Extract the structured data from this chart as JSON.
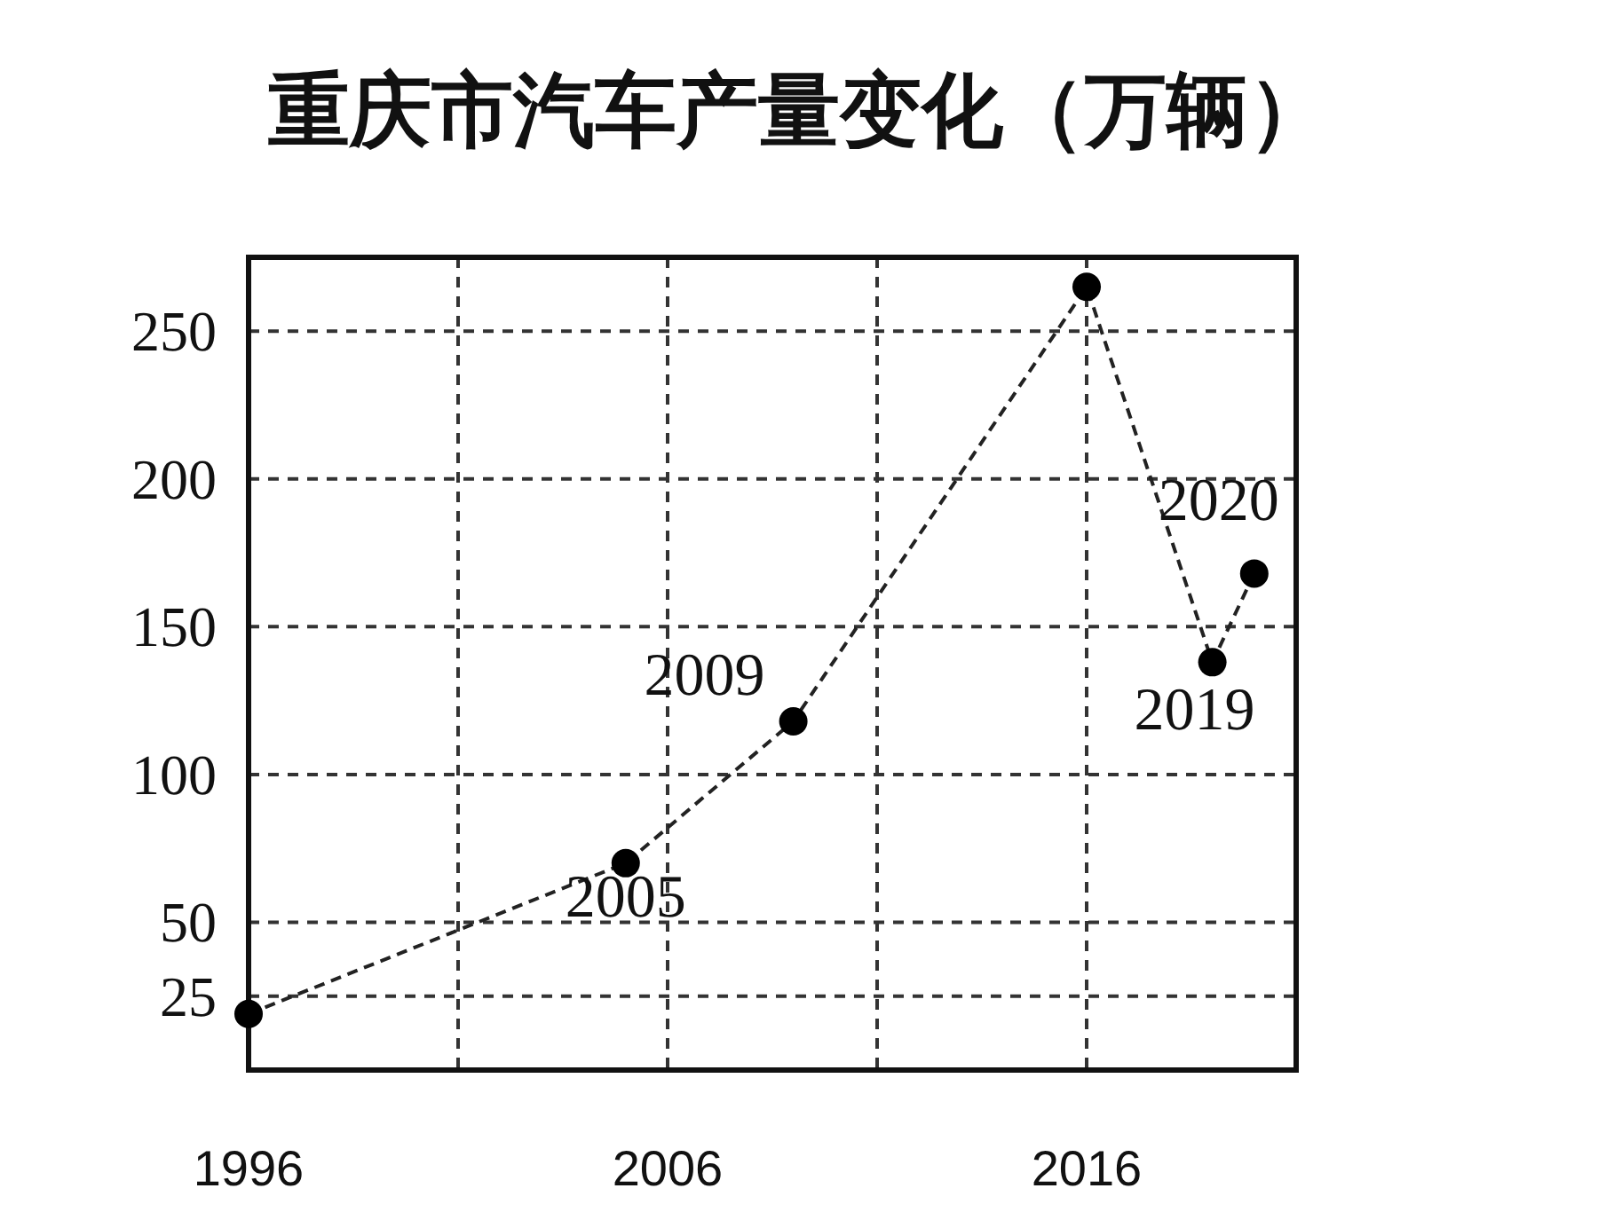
{
  "chart_data": {
    "type": "line",
    "title": "重庆市汽车产量变化（万辆）",
    "x": [
      1996,
      2005,
      2009,
      2016,
      2019,
      2020
    ],
    "series": [
      {
        "color": "#222222",
        "values": [
          19,
          70,
          118,
          265,
          138,
          168
        ]
      }
    ],
    "xlim": [
      1996,
      2021
    ],
    "xticks": [
      1996,
      {
        "value": 2001,
        "label": null
      },
      2006,
      {
        "value": 2011,
        "label": null
      },
      2016
    ],
    "ylim": [
      0,
      275
    ],
    "yticks": [
      25,
      50,
      100,
      150,
      200,
      250
    ],
    "grid": true,
    "marker": "circle",
    "line_style": "dashed",
    "annotations": [
      {
        "text": "2005",
        "x": 2005,
        "y": 70
      },
      {
        "text": "2009",
        "x": 2009,
        "y": 118
      },
      {
        "text": "2019",
        "x": 2019,
        "y": 138
      },
      {
        "text": "2020",
        "x": 2020,
        "y": 168
      }
    ]
  }
}
